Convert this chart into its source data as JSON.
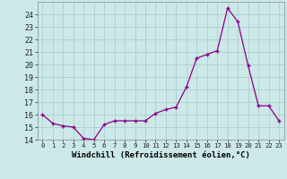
{
  "xdata": [
    0,
    1,
    2,
    3,
    4,
    5,
    6,
    7,
    8,
    9,
    10,
    11,
    12,
    13,
    14,
    15,
    16,
    17,
    18,
    19,
    20,
    21,
    22,
    23
  ],
  "ydata": [
    16.0,
    15.3,
    15.1,
    15.0,
    14.1,
    14.0,
    15.2,
    15.5,
    15.5,
    15.5,
    15.5,
    16.1,
    16.4,
    16.6,
    18.2,
    20.5,
    20.8,
    21.1,
    24.5,
    23.4,
    19.9,
    16.7,
    16.7,
    15.5
  ],
  "line_color": "#8B008B",
  "marker_color": "#8B008B",
  "bg_color": "#cce8e8",
  "grid_color": "#a8cccc",
  "xlabel": "Windchill (Refroidissement éolien,°C)",
  "ylim": [
    14,
    25
  ],
  "xlim_min": -0.5,
  "xlim_max": 23.5,
  "yticks": [
    14,
    15,
    16,
    17,
    18,
    19,
    20,
    21,
    22,
    23,
    24
  ],
  "xticks": [
    0,
    1,
    2,
    3,
    4,
    5,
    6,
    7,
    8,
    9,
    10,
    11,
    12,
    13,
    14,
    15,
    16,
    17,
    18,
    19,
    20,
    21,
    22,
    23
  ],
  "font_size_axis": 6.5,
  "font_size_xtick": 5.2,
  "font_size_ytick": 6.0,
  "marker_size": 3.5,
  "linewidth": 0.9
}
